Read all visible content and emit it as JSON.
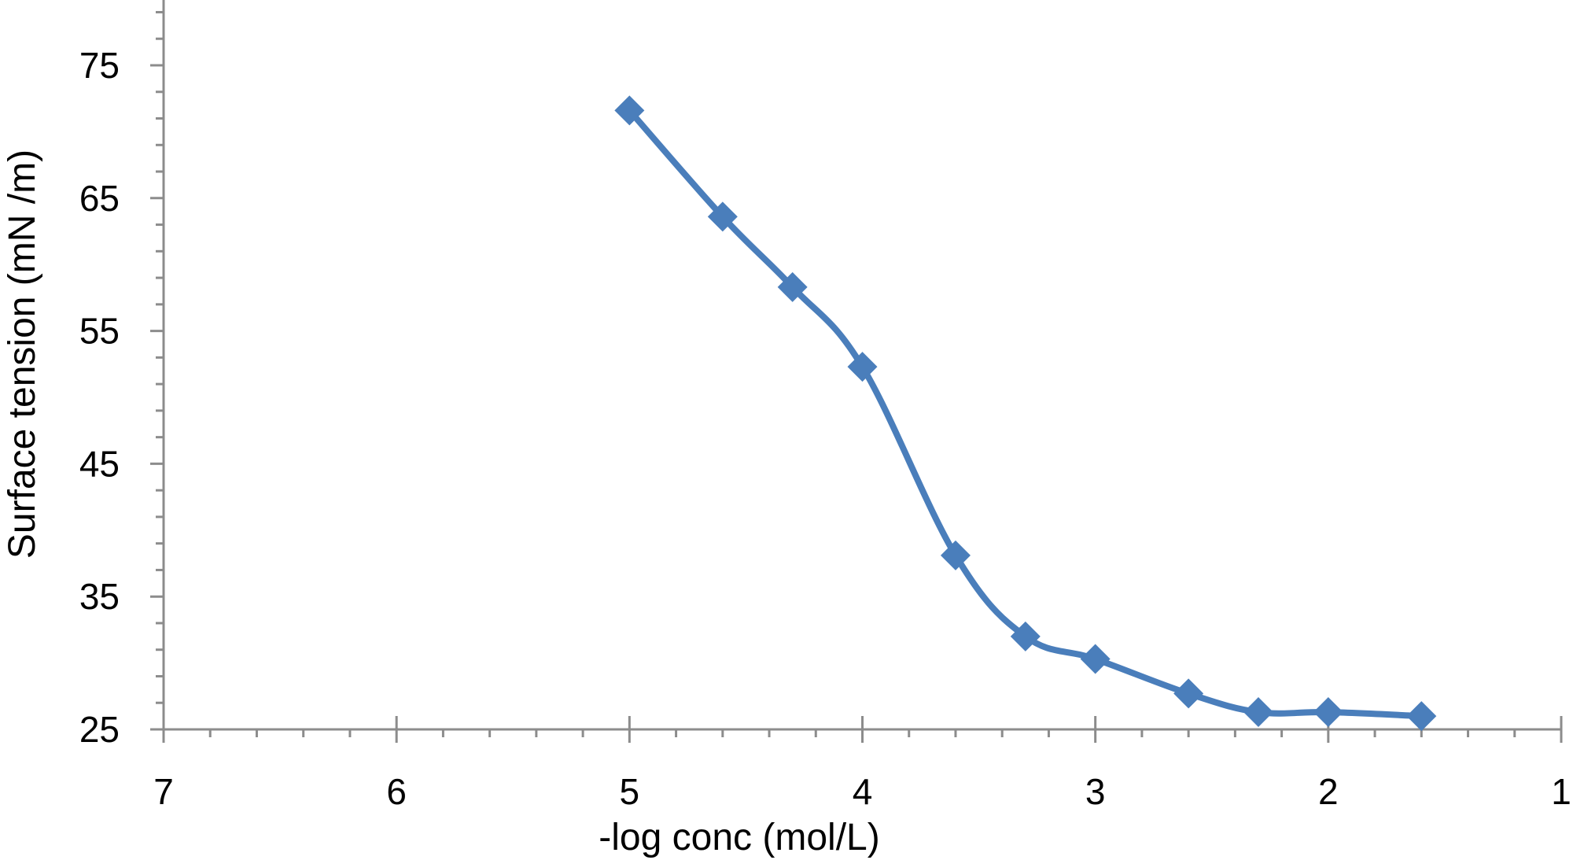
{
  "chart_data": {
    "type": "line",
    "xlabel": "-log conc (mol/L)",
    "ylabel": "Surface tension (mN /m)",
    "xlim": [
      7,
      1
    ],
    "ylim": [
      25,
      80
    ],
    "x_reversed": true,
    "x_ticks": [
      7,
      6,
      5,
      4,
      3,
      2,
      1
    ],
    "y_ticks": [
      25,
      35,
      45,
      55,
      65,
      75
    ],
    "x_minor_step": 0.2,
    "y_minor_step": 2,
    "grid": false,
    "legend": "none",
    "smooth": true,
    "marker": "diamond",
    "series": [
      {
        "color": "#4a7ebb",
        "x": [
          5.0,
          4.6,
          4.3,
          4.0,
          3.6,
          3.3,
          3.0,
          2.6,
          2.3,
          2.0,
          1.6
        ],
        "y": [
          71.6,
          63.6,
          58.3,
          52.3,
          38.1,
          32.0,
          30.3,
          27.7,
          26.3,
          26.3,
          26.0
        ]
      }
    ]
  }
}
